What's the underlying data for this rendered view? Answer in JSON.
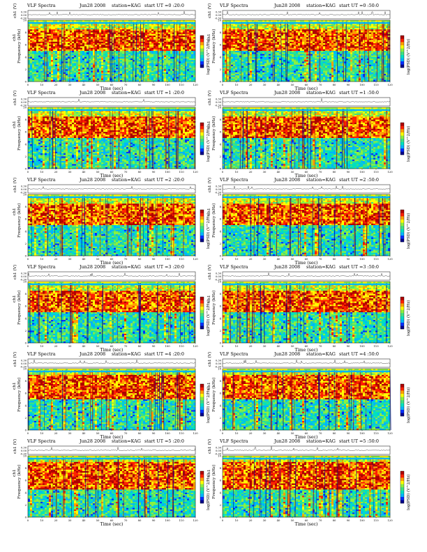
{
  "page": {
    "title_prefix": "VLF Spectra",
    "station_label": "station=KAG",
    "start_label": "start UT"
  },
  "colors": {
    "spectrogram_scale": [
      "#00008b",
      "#0030ff",
      "#00b4ff",
      "#00e0c0",
      "#40e080",
      "#8cf040",
      "#ffff00",
      "#ffa000",
      "#ff2000",
      "#b00000"
    ],
    "trace": "#000000",
    "axis": "#000000",
    "colorbar_border": "#000000"
  },
  "chart_data": [
    {
      "type": "heatmap",
      "date": "Jun28 2008",
      "start_ut": "=0 :20:0",
      "signal_ylabel": "ch1 (V)",
      "signal_ticks": [
        "0.30",
        "0.00",
        "-0.30"
      ],
      "freq_ylabel": "Frequency (kHz)",
      "freq_ticks": [
        "10",
        "8",
        "6",
        "4",
        "2",
        "0"
      ],
      "channel_label": "ch1",
      "xlabel": "Time (sec)",
      "xticks": [
        0,
        10,
        20,
        30,
        40,
        50,
        60,
        70,
        80,
        90,
        100,
        110,
        120
      ],
      "xlim": [
        0,
        120
      ],
      "ylim": [
        0,
        10
      ],
      "colorbar_label": "log(PSD) (V^2/Hz)",
      "band_khz": [
        5,
        8.5
      ]
    },
    {
      "type": "heatmap",
      "date": "Jun28 2008",
      "start_ut": "=0 :50:0",
      "signal_ylabel": "ch1 (V)",
      "signal_ticks": [
        "0.30",
        "0.00",
        "-0.30"
      ],
      "freq_ylabel": "Frequency (kHz)",
      "freq_ticks": [
        "10",
        "8",
        "6",
        "4",
        "2",
        "0"
      ],
      "channel_label": "ch1",
      "xlabel": "Time (sec)",
      "xticks": [
        0,
        10,
        20,
        30,
        40,
        50,
        60,
        70,
        80,
        90,
        100,
        110,
        120
      ],
      "xlim": [
        0,
        120
      ],
      "ylim": [
        0,
        10
      ],
      "colorbar_label": "log(PSD) (V^2/Hz)",
      "band_khz": [
        5,
        8.5
      ]
    },
    {
      "type": "heatmap",
      "date": "Jun28 2008",
      "start_ut": "=1 :20:0",
      "signal_ylabel": "ch1 (V)",
      "signal_ticks": [
        "0.30",
        "0.00",
        "-0.30"
      ],
      "freq_ylabel": "Frequency (kHz)",
      "freq_ticks": [
        "10",
        "8",
        "6",
        "4",
        "2",
        "0"
      ],
      "channel_label": "ch1",
      "xlabel": "Time (sec)",
      "xticks": [
        0,
        10,
        20,
        30,
        40,
        50,
        60,
        70,
        80,
        90,
        100,
        110,
        120
      ],
      "xlim": [
        0,
        120
      ],
      "ylim": [
        0,
        10
      ],
      "colorbar_label": "log(PSD) (V^2/Hz)",
      "band_khz": [
        5,
        8.5
      ]
    },
    {
      "type": "heatmap",
      "date": "Jun28 2008",
      "start_ut": "=1 :50:0",
      "signal_ylabel": "ch1 (V)",
      "signal_ticks": [
        "0.30",
        "0.00",
        "-0.30"
      ],
      "freq_ylabel": "Frequency (kHz)",
      "freq_ticks": [
        "10",
        "8",
        "6",
        "4",
        "2",
        "0"
      ],
      "channel_label": "ch1",
      "xlabel": "Time (sec)",
      "xticks": [
        0,
        10,
        20,
        30,
        40,
        50,
        60,
        70,
        80,
        90,
        100,
        110,
        120
      ],
      "xlim": [
        0,
        120
      ],
      "ylim": [
        0,
        10
      ],
      "colorbar_label": "log(PSD) (V^2/Hz)",
      "band_khz": [
        5,
        8.5
      ]
    },
    {
      "type": "heatmap",
      "date": "Jun28 2008",
      "start_ut": "=2 :20:0",
      "signal_ylabel": "ch1 (V)",
      "signal_ticks": [
        "0.30",
        "0.00",
        "-0.30"
      ],
      "freq_ylabel": "Frequency (kHz)",
      "freq_ticks": [
        "10",
        "8",
        "6",
        "4",
        "2",
        "0"
      ],
      "channel_label": "ch1",
      "xlabel": "Time (sec)",
      "xticks": [
        0,
        10,
        20,
        30,
        40,
        50,
        60,
        70,
        80,
        90,
        100,
        110,
        120
      ],
      "xlim": [
        0,
        120
      ],
      "ylim": [
        0,
        10
      ],
      "colorbar_label": "log(PSD) (V^2/Hz)",
      "band_khz": [
        5,
        8.5
      ]
    },
    {
      "type": "heatmap",
      "date": "Jun28 2008",
      "start_ut": "=2 :50:0",
      "signal_ylabel": "ch1 (V)",
      "signal_ticks": [
        "0.30",
        "0.00",
        "-0.30"
      ],
      "freq_ylabel": "Frequency (kHz)",
      "freq_ticks": [
        "10",
        "8",
        "6",
        "4",
        "2",
        "0"
      ],
      "channel_label": "ch1",
      "xlabel": "Time (sec)",
      "xticks": [
        0,
        10,
        20,
        30,
        40,
        50,
        60,
        70,
        80,
        90,
        100,
        110,
        120
      ],
      "xlim": [
        0,
        120
      ],
      "ylim": [
        0,
        10
      ],
      "colorbar_label": "log(PSD) (V^2/Hz)",
      "band_khz": [
        5,
        8.5
      ]
    },
    {
      "type": "heatmap",
      "date": "Jun28 2008",
      "start_ut": "=3 :20:0",
      "signal_ylabel": "ch1 (V)",
      "signal_ticks": [
        "0.30",
        "0.00",
        "-0.30"
      ],
      "freq_ylabel": "Frequency (kHz)",
      "freq_ticks": [
        "10",
        "8",
        "6",
        "4",
        "2",
        "0"
      ],
      "channel_label": "ch1",
      "xlabel": "Time (sec)",
      "xticks": [
        0,
        10,
        20,
        30,
        40,
        50,
        60,
        70,
        80,
        90,
        100,
        110,
        120
      ],
      "xlim": [
        0,
        120
      ],
      "ylim": [
        0,
        10
      ],
      "colorbar_label": "log(PSD) (V^2/Hz)",
      "band_khz": [
        5,
        8.5
      ]
    },
    {
      "type": "heatmap",
      "date": "Jun28 2008",
      "start_ut": "=3 :50:0",
      "signal_ylabel": "ch1 (V)",
      "signal_ticks": [
        "0.30",
        "0.00",
        "-0.30"
      ],
      "freq_ylabel": "Frequency (kHz)",
      "freq_ticks": [
        "10",
        "8",
        "6",
        "4",
        "2",
        "0"
      ],
      "channel_label": "ch1",
      "xlabel": "Time (sec)",
      "xticks": [
        0,
        10,
        20,
        30,
        40,
        50,
        60,
        70,
        80,
        90,
        100,
        110,
        120
      ],
      "xlim": [
        0,
        120
      ],
      "ylim": [
        0,
        10
      ],
      "colorbar_label": "log(PSD) (V^2/Hz)",
      "band_khz": [
        5,
        8.5
      ]
    },
    {
      "type": "heatmap",
      "date": "Jun28 2008",
      "start_ut": "=4 :20:0",
      "signal_ylabel": "ch1 (V)",
      "signal_ticks": [
        "0.30",
        "0.00",
        "-0.30"
      ],
      "freq_ylabel": "Frequency (kHz)",
      "freq_ticks": [
        "10",
        "8",
        "6",
        "4",
        "2",
        "0"
      ],
      "channel_label": "ch1",
      "xlabel": "Time (sec)",
      "xticks": [
        0,
        10,
        20,
        30,
        40,
        50,
        60,
        70,
        80,
        90,
        100,
        110,
        120
      ],
      "xlim": [
        0,
        120
      ],
      "ylim": [
        0,
        10
      ],
      "colorbar_label": "log(PSD) (V^2/Hz)",
      "band_khz": [
        5,
        9
      ]
    },
    {
      "type": "heatmap",
      "date": "Jun28 2008",
      "start_ut": "=4 :50:0",
      "signal_ylabel": "ch1 (V)",
      "signal_ticks": [
        "0.30",
        "0.00",
        "-0.30"
      ],
      "freq_ylabel": "Frequency (kHz)",
      "freq_ticks": [
        "10",
        "8",
        "6",
        "4",
        "2",
        "0"
      ],
      "channel_label": "ch1",
      "xlabel": "Time (sec)",
      "xticks": [
        0,
        10,
        20,
        30,
        40,
        50,
        60,
        70,
        80,
        90,
        100,
        110,
        120
      ],
      "xlim": [
        0,
        120
      ],
      "ylim": [
        0,
        10
      ],
      "colorbar_label": "log(PSD) (V^2/Hz)",
      "band_khz": [
        5,
        9
      ]
    },
    {
      "type": "heatmap",
      "date": "Jun28 2008",
      "start_ut": "=5 :20:0",
      "signal_ylabel": "ch1 (V)",
      "signal_ticks": [
        "0.30",
        "0.00",
        "-0.30"
      ],
      "freq_ylabel": "Frequency (kHz)",
      "freq_ticks": [
        "10",
        "8",
        "6",
        "4",
        "2",
        "0"
      ],
      "channel_label": "ch1",
      "xlabel": "Time (sec)",
      "xticks": [
        0,
        10,
        20,
        30,
        40,
        50,
        60,
        70,
        80,
        90,
        100,
        110,
        120
      ],
      "xlim": [
        0,
        120
      ],
      "ylim": [
        0,
        10
      ],
      "colorbar_label": "log(PSD) (V^2/Hz)",
      "band_khz": [
        4.5,
        9
      ]
    },
    {
      "type": "heatmap",
      "date": "Jun28 2008",
      "start_ut": "=5 :50:0",
      "signal_ylabel": "ch1 (V)",
      "signal_ticks": [
        "0.30",
        "0.00",
        "-0.30"
      ],
      "freq_ylabel": "Frequency (kHz)",
      "freq_ticks": [
        "10",
        "8",
        "6",
        "4",
        "2",
        "0"
      ],
      "channel_label": "ch1",
      "xlabel": "Time (sec)",
      "xticks": [
        0,
        10,
        20,
        30,
        40,
        50,
        60,
        70,
        80,
        90,
        100,
        110,
        120
      ],
      "xlim": [
        0,
        120
      ],
      "ylim": [
        0,
        10
      ],
      "colorbar_label": "log(PSD) (V^2/Hz)",
      "band_khz": [
        4.5,
        9
      ]
    }
  ]
}
